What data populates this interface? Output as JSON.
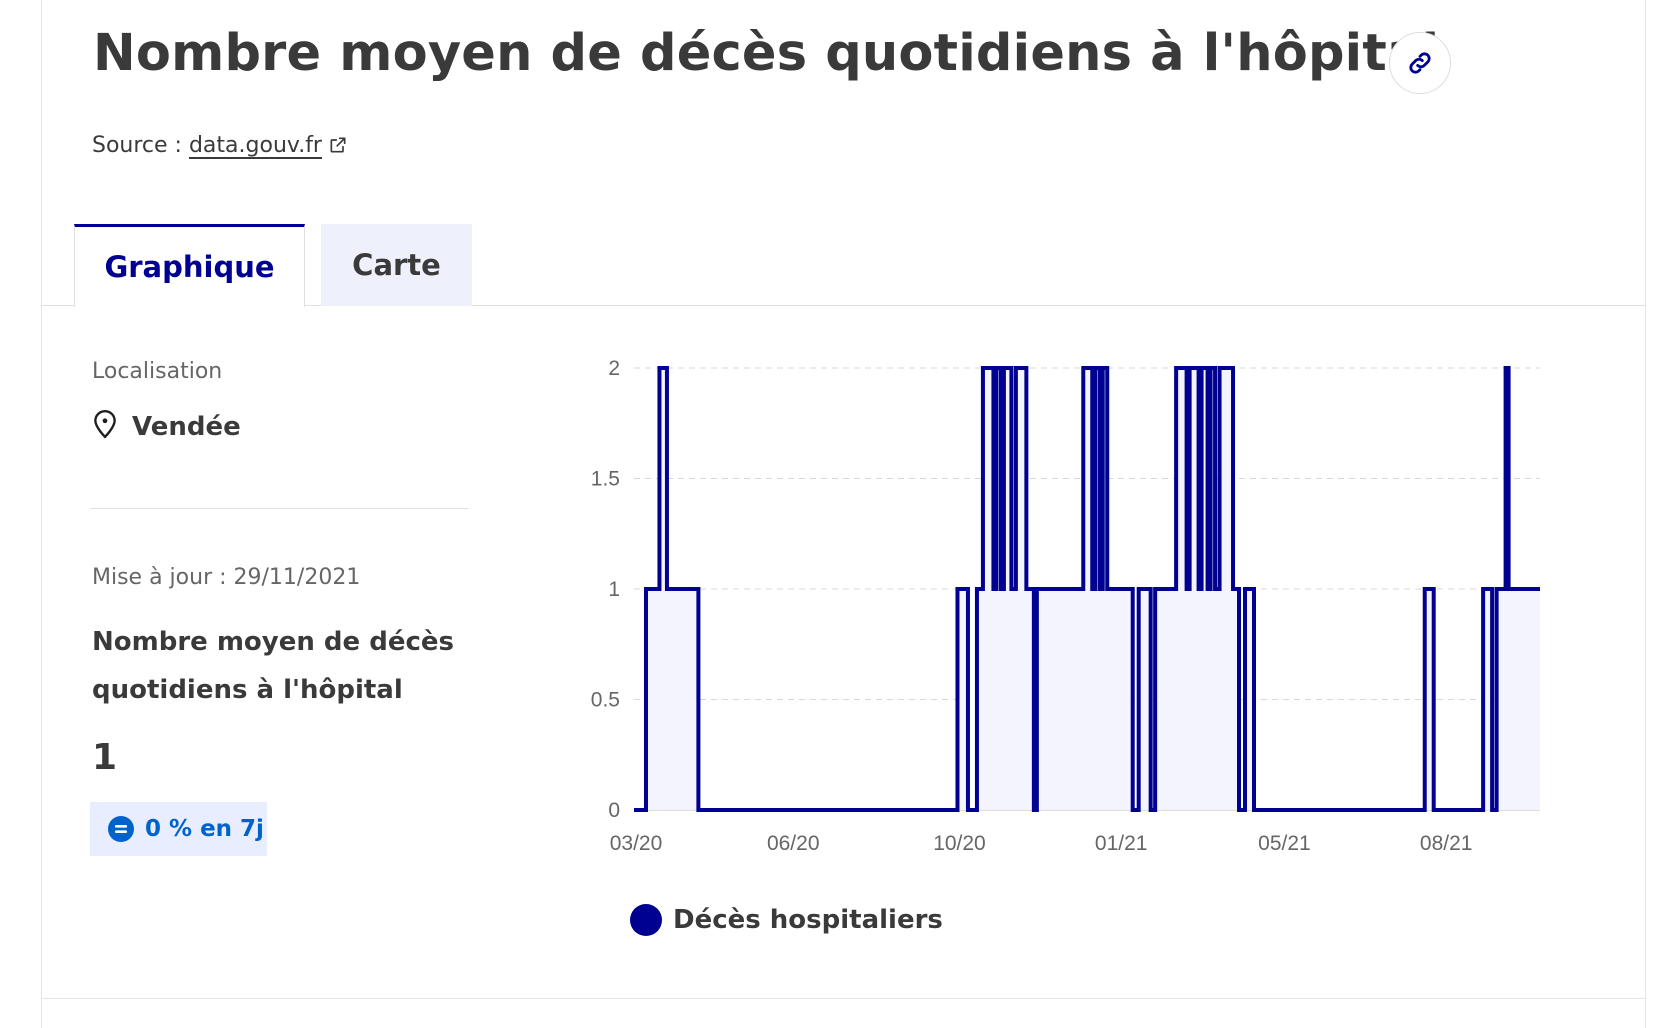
{
  "page": {
    "title": "Nombre moyen de décès quotidiens à l'hôpital",
    "source_label": "Source :",
    "source_link": "data.gouv.fr"
  },
  "tabs": [
    {
      "label": "Graphique",
      "active": true
    },
    {
      "label": "Carte",
      "active": false
    }
  ],
  "sidebar": {
    "location_label": "Localisation",
    "location_value": "Vendée",
    "update_text": "Mise à jour : 29/11/2021",
    "metric_title": "Nombre moyen de décès quotidiens à l'hôpital",
    "metric_value": "1",
    "badge_text": "0 % en 7j"
  },
  "colors": {
    "accent": "#000091",
    "fill": "#f3f4fd",
    "badge_bg": "#e8edff",
    "badge_text": "#0063cb"
  },
  "icons": {
    "link": "link-icon",
    "external": "external-link-icon",
    "location": "map-pin-icon",
    "equal": "equal-icon"
  },
  "chart_data": {
    "type": "line",
    "step": true,
    "title": "",
    "xlabel": "",
    "ylabel": "",
    "x_ticks": [
      "03/20",
      "06/20",
      "10/20",
      "01/21",
      "05/21",
      "08/21"
    ],
    "x_range": [
      "2020-03-18",
      "2021-11-29"
    ],
    "ylim": [
      0,
      2
    ],
    "y_ticks": [
      "0",
      "0.5",
      "1",
      "1.5",
      "2"
    ],
    "grid": "horizontal dashed",
    "legend_position": "bottom-left",
    "series": [
      {
        "name": "Décès hospitaliers",
        "color": "#000091",
        "points": [
          [
            "2020-03-18",
            0
          ],
          [
            "2020-03-26",
            1
          ],
          [
            "2020-04-04",
            2
          ],
          [
            "2020-04-09",
            1
          ],
          [
            "2020-04-30",
            0
          ],
          [
            "2020-10-20",
            1
          ],
          [
            "2020-10-27",
            0
          ],
          [
            "2020-11-02",
            1
          ],
          [
            "2020-11-06",
            2
          ],
          [
            "2020-11-13",
            1
          ],
          [
            "2020-11-15",
            2
          ],
          [
            "2020-11-18",
            1
          ],
          [
            "2020-11-20",
            2
          ],
          [
            "2020-11-25",
            1
          ],
          [
            "2020-11-28",
            2
          ],
          [
            "2020-12-05",
            1
          ],
          [
            "2020-12-10",
            0
          ],
          [
            "2020-12-12",
            1
          ],
          [
            "2021-01-12",
            2
          ],
          [
            "2021-01-18",
            1
          ],
          [
            "2021-01-20",
            2
          ],
          [
            "2021-01-23",
            1
          ],
          [
            "2021-01-25",
            2
          ],
          [
            "2021-01-28",
            1
          ],
          [
            "2021-02-14",
            0
          ],
          [
            "2021-02-18",
            1
          ],
          [
            "2021-02-26",
            0
          ],
          [
            "2021-03-01",
            1
          ],
          [
            "2021-03-15",
            2
          ],
          [
            "2021-03-22",
            1
          ],
          [
            "2021-03-24",
            2
          ],
          [
            "2021-03-30",
            1
          ],
          [
            "2021-04-01",
            2
          ],
          [
            "2021-04-05",
            1
          ],
          [
            "2021-04-07",
            2
          ],
          [
            "2021-04-10",
            1
          ],
          [
            "2021-04-13",
            2
          ],
          [
            "2021-04-22",
            1
          ],
          [
            "2021-04-26",
            0
          ],
          [
            "2021-04-30",
            1
          ],
          [
            "2021-05-06",
            0
          ],
          [
            "2021-08-28",
            1
          ],
          [
            "2021-09-03",
            0
          ],
          [
            "2021-10-06",
            1
          ],
          [
            "2021-10-12",
            0
          ],
          [
            "2021-10-15",
            1
          ],
          [
            "2021-10-21",
            2
          ],
          [
            "2021-10-23",
            1
          ],
          [
            "2021-11-29",
            1
          ]
        ]
      }
    ]
  }
}
